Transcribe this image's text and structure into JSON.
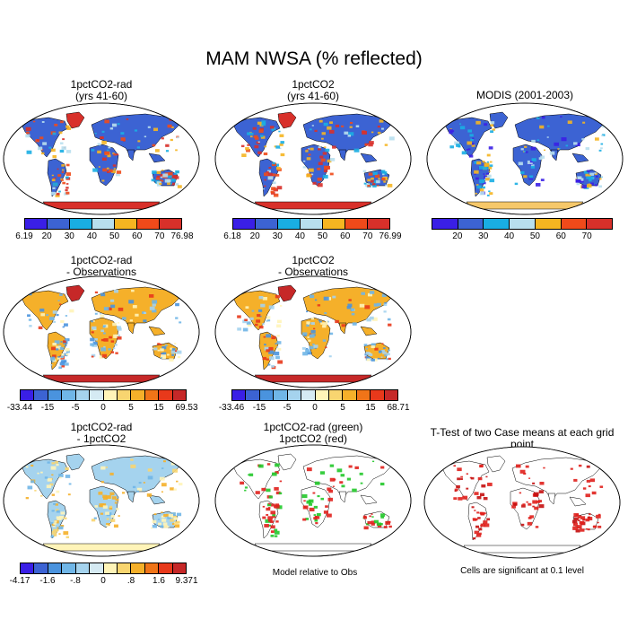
{
  "title": "MAM NWSA (% reflected)",
  "colors": {
    "scale7": [
      "#3a1fe6",
      "#3c63d3",
      "#19aee3",
      "#b8dfee",
      "#f5b521",
      "#f04a1a",
      "#d8302a"
    ],
    "diff12": [
      "#3a1fe6",
      "#3c63d3",
      "#4a93de",
      "#70b6e7",
      "#a5d3ee",
      "#d5eaf3",
      "#fff4b8",
      "#f8d570",
      "#f5b02a",
      "#f07418",
      "#e8391b",
      "#c62828"
    ],
    "land": "#3f74cf",
    "ocean": "#ffffff",
    "ice": "#d8302a"
  },
  "panels": [
    {
      "id": "p1",
      "title_line1": "1pctCO2-rad",
      "title_line2": "(yrs 41-60)",
      "scale": "scale7",
      "colorbar_labels": [
        "6.19",
        "20",
        "30",
        "40",
        "50",
        "60",
        "70",
        "76.98"
      ]
    },
    {
      "id": "p2",
      "title_line1": "1pctCO2",
      "title_line2": "(yrs 41-60)",
      "scale": "scale7",
      "colorbar_labels": [
        "6.18",
        "20",
        "30",
        "40",
        "50",
        "60",
        "70",
        "76.99"
      ]
    },
    {
      "id": "p3",
      "title_line1": "MODIS (2001-2003)",
      "title_line2": "",
      "scale": "scale7",
      "colorbar_labels": [
        "",
        "20",
        "30",
        "40",
        "50",
        "60",
        "70",
        ""
      ]
    },
    {
      "id": "p4",
      "title_line1": "1pctCO2-rad",
      "title_line2": "- Observations",
      "scale": "diff12",
      "colorbar_labels": [
        "-33.44",
        "-15",
        "-5",
        "0",
        "5",
        "15",
        "69.53"
      ]
    },
    {
      "id": "p5",
      "title_line1": "1pctCO2",
      "title_line2": "- Observations",
      "scale": "diff12",
      "colorbar_labels": [
        "-33.46",
        "-15",
        "-5",
        "0",
        "5",
        "15",
        "68.71"
      ]
    },
    {
      "id": "p7",
      "title_line1": "1pctCO2-rad",
      "title_line2": "- 1pctCO2",
      "scale": "diff12",
      "colorbar_labels": [
        "-4.17",
        "-1.6",
        "-.8",
        "0",
        ".8",
        "1.6",
        "9.371"
      ]
    },
    {
      "id": "p8",
      "title_line1": "1pctCO2-rad (green)",
      "title_line2": "1pctCO2 (red)",
      "caption": "Model relative to Obs"
    },
    {
      "id": "p9",
      "title_line1": "T-Test of two Case means at each grid point",
      "title_line2": "",
      "caption": "Cells are significant at 0.1 level"
    }
  ]
}
